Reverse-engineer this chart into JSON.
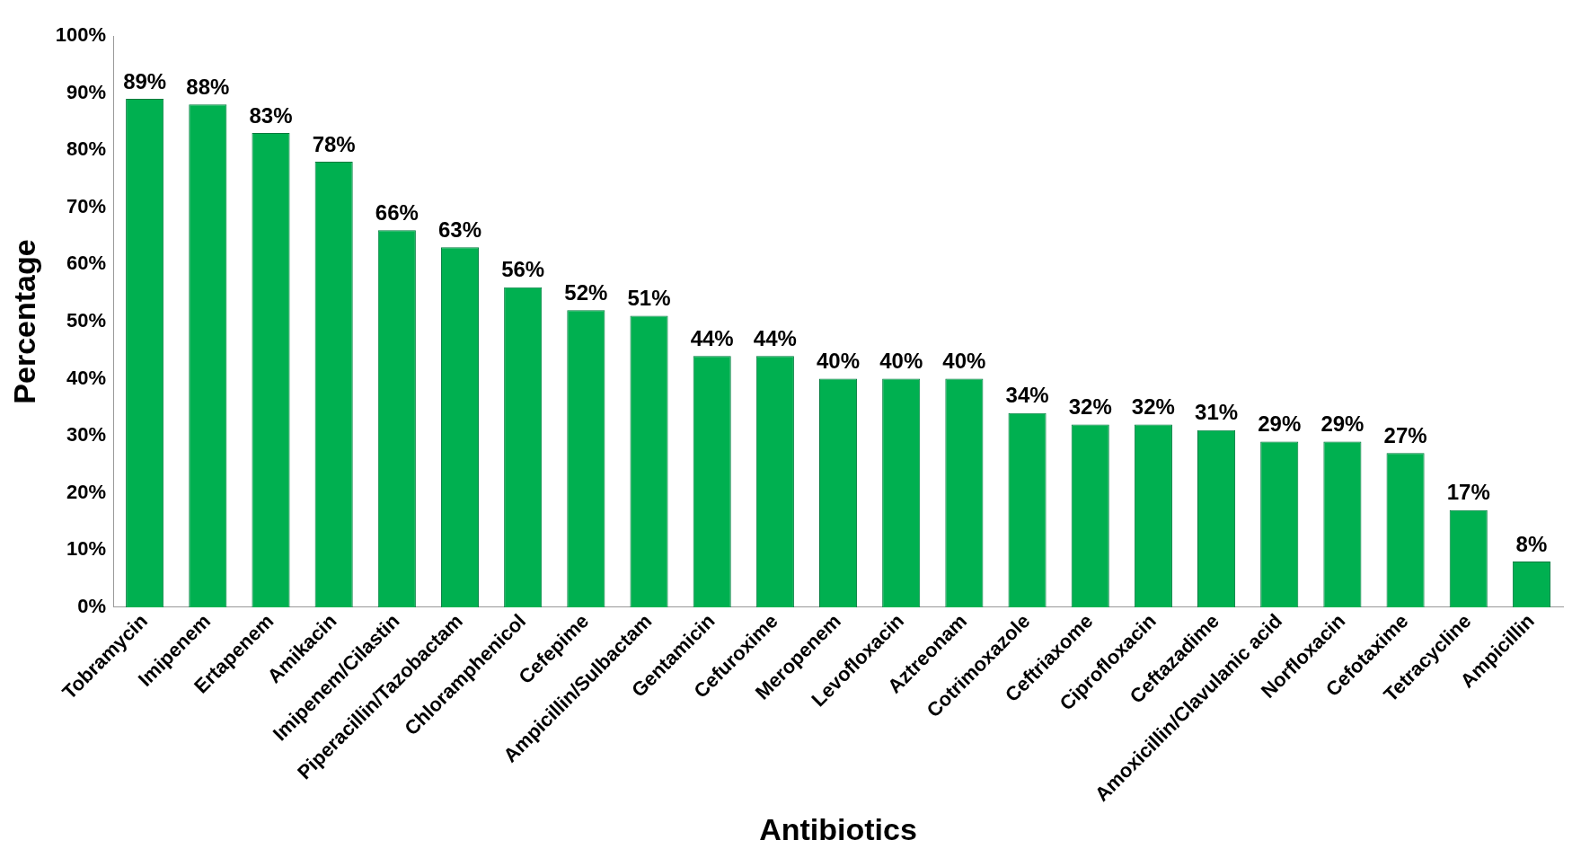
{
  "chart_data": {
    "type": "bar",
    "xlabel": "Antibiotics",
    "ylabel": "Percentage",
    "categories": [
      "Tobramycin",
      "Imipenem",
      "Ertapenem",
      "Amikacin",
      "Imipenem/Cilastin",
      "Piperacillin/Tazobactam",
      "Chloramphenicol",
      "Cefepime",
      "Ampicillin/Sulbactam",
      "Gentamicin",
      "Cefuroxime",
      "Meropenem",
      "Levofloxacin",
      "Aztreonam",
      "Cotrimoxazole",
      "Ceftriaxome",
      "Ciprofloxacin",
      "Ceftazadime",
      "Amoxicillin/Clavulanic acid",
      "Norfloxacin",
      "Cefotaxime",
      "Tetracycline",
      "Ampicillin"
    ],
    "values": [
      89,
      88,
      83,
      78,
      66,
      63,
      56,
      52,
      51,
      44,
      44,
      40,
      40,
      40,
      34,
      32,
      32,
      31,
      29,
      29,
      27,
      17,
      8
    ],
    "value_labels": [
      "89%",
      "88%",
      "83%",
      "78%",
      "66%",
      "63%",
      "56%",
      "52%",
      "51%",
      "44%",
      "44%",
      "40%",
      "40%",
      "40%",
      "34%",
      "32%",
      "32%",
      "31%",
      "29%",
      "29%",
      "27%",
      "17%",
      "8%"
    ],
    "color": "#00b050",
    "ylim": [
      0,
      100
    ],
    "yticks": [
      {
        "value": 0,
        "label": "0%"
      },
      {
        "value": 10,
        "label": "10%"
      },
      {
        "value": 20,
        "label": "20%"
      },
      {
        "value": 30,
        "label": "30%"
      },
      {
        "value": 40,
        "label": "40%"
      },
      {
        "value": 50,
        "label": "50%"
      },
      {
        "value": 60,
        "label": "60%"
      },
      {
        "value": 70,
        "label": "70%"
      },
      {
        "value": 80,
        "label": "80%"
      },
      {
        "value": 90,
        "label": "90%"
      },
      {
        "value": 100,
        "label": "100%"
      }
    ],
    "grid": false,
    "legend": false
  }
}
